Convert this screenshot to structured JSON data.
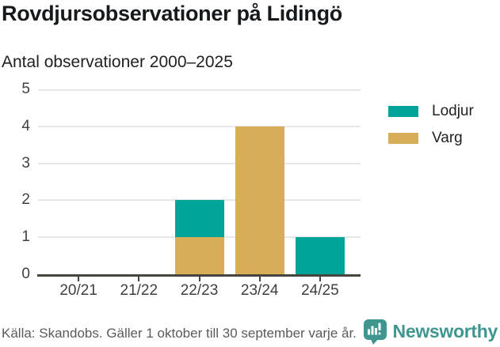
{
  "header": {
    "title": "Rovdjursobservationer på Lidingö",
    "subtitle": "Antal observationer 2000–2025"
  },
  "legend": {
    "items": [
      {
        "label": "Lodjur",
        "color": "#00a499"
      },
      {
        "label": "Varg",
        "color": "#d8ad58"
      }
    ]
  },
  "footer": {
    "source": "Källa: Skandobs. Gäller 1 oktober till 30 september varje år.",
    "brand": "Newsworthy",
    "brand_color": "#3f968f"
  },
  "chart_data": {
    "type": "bar",
    "stacked": true,
    "title": "Rovdjursobservationer på Lidingö",
    "subtitle": "Antal observationer 2000–2025",
    "categories": [
      "20/21",
      "21/22",
      "22/23",
      "23/24",
      "24/25"
    ],
    "series": [
      {
        "name": "Varg",
        "color": "#d8ad58",
        "values": [
          0,
          0,
          1,
          4,
          0
        ]
      },
      {
        "name": "Lodjur",
        "color": "#00a499",
        "values": [
          0,
          0,
          1,
          0,
          1
        ]
      }
    ],
    "xlabel": "",
    "ylabel": "",
    "ylim": [
      0,
      5
    ],
    "yticks": [
      0,
      1,
      2,
      3,
      4,
      5
    ],
    "grid": true,
    "legend_position": "right",
    "axis_color": "#474440",
    "grid_color": "#e7e7e7",
    "tick_label_color": "#3f3f3f"
  }
}
